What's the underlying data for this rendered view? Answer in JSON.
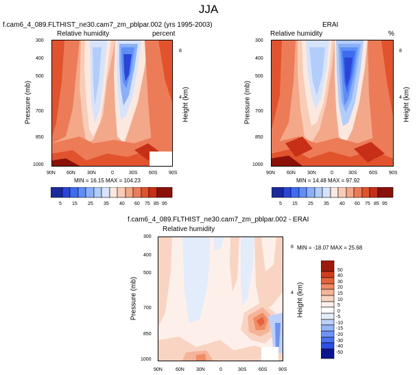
{
  "main_title": "JJA",
  "chart_data": [
    {
      "type": "heatmap",
      "title": "f.cam6_4_089.FLTHIST_ne30.cam7_zm_pblpar.002 (yrs 1995-2003)",
      "left_label": "Relative humidity",
      "right_label": "percent",
      "ylabel": "Pressure (mb)",
      "ylabel_right": "Height (km)",
      "x_ticks": [
        "90N",
        "60N",
        "30N",
        "0",
        "30S",
        "60S",
        "90S"
      ],
      "y_ticks": [
        "300",
        "400",
        "500",
        "700",
        "850",
        "1000"
      ],
      "y_right_ticks": [
        "8",
        "4"
      ],
      "stats": "MIN = 16.15  MAX = 104.23",
      "colorbar_levels": [
        "5",
        "15",
        "25",
        "35",
        "40",
        "60",
        "75",
        "85",
        "95"
      ]
    },
    {
      "type": "heatmap",
      "title": "ERAI",
      "left_label": "Relative humidity",
      "right_label": "%",
      "ylabel": "Pressure (mb)",
      "ylabel_right": "Height (km)",
      "x_ticks": [
        "90N",
        "60N",
        "30N",
        "0",
        "30S",
        "60S",
        "90S"
      ],
      "y_ticks": [
        "300",
        "400",
        "500",
        "700",
        "850",
        "1000"
      ],
      "y_right_ticks": [
        "8",
        "4"
      ],
      "stats": "MIN = 14.48  MAX = 97.92",
      "colorbar_levels": [
        "5",
        "15",
        "25",
        "35",
        "40",
        "60",
        "75",
        "85",
        "95"
      ]
    },
    {
      "type": "heatmap",
      "title": "f.cam6_4_089.FLTHIST_ne30.cam7_zm_pblpar.002 - ERAI",
      "left_label": "Relative humidity",
      "ylabel": "Pressure (mb)",
      "ylabel_right": "Height (km)",
      "x_ticks": [
        "90N",
        "60N",
        "30N",
        "0",
        "30S",
        "60S",
        "90S"
      ],
      "y_ticks": [
        "300",
        "400",
        "500",
        "700",
        "850",
        "1000"
      ],
      "y_right_ticks": [
        "8",
        "4"
      ],
      "stats": "MIN = -18.07  MAX = 25.68",
      "colorbar_levels": [
        "50",
        "40",
        "30",
        "20",
        "15",
        "10",
        "5",
        "0",
        "-5",
        "-10",
        "-15",
        "-20",
        "-30",
        "-40",
        "-50"
      ]
    }
  ],
  "colors": {
    "rh_scale": [
      "#1a2a9c",
      "#2a46d8",
      "#3d6cf0",
      "#5f8ff6",
      "#8ab0f9",
      "#b3cdfa",
      "#d6e3fb",
      "#fbe9e0",
      "#f8ccb7",
      "#f3a88a",
      "#ec7c57",
      "#e0532d",
      "#c72f17",
      "#8a1208"
    ],
    "diff_scale": [
      "#0c148f",
      "#1b2fc4",
      "#2f4ee6",
      "#4a72f2",
      "#6e93f5",
      "#95b3f7",
      "#bdd0f9",
      "#e3ecfb",
      "#fdf0ea",
      "#f9d4c2",
      "#f5b398",
      "#ef8c66",
      "#e6623a",
      "#d23d1c",
      "#9e1a0a"
    ]
  }
}
